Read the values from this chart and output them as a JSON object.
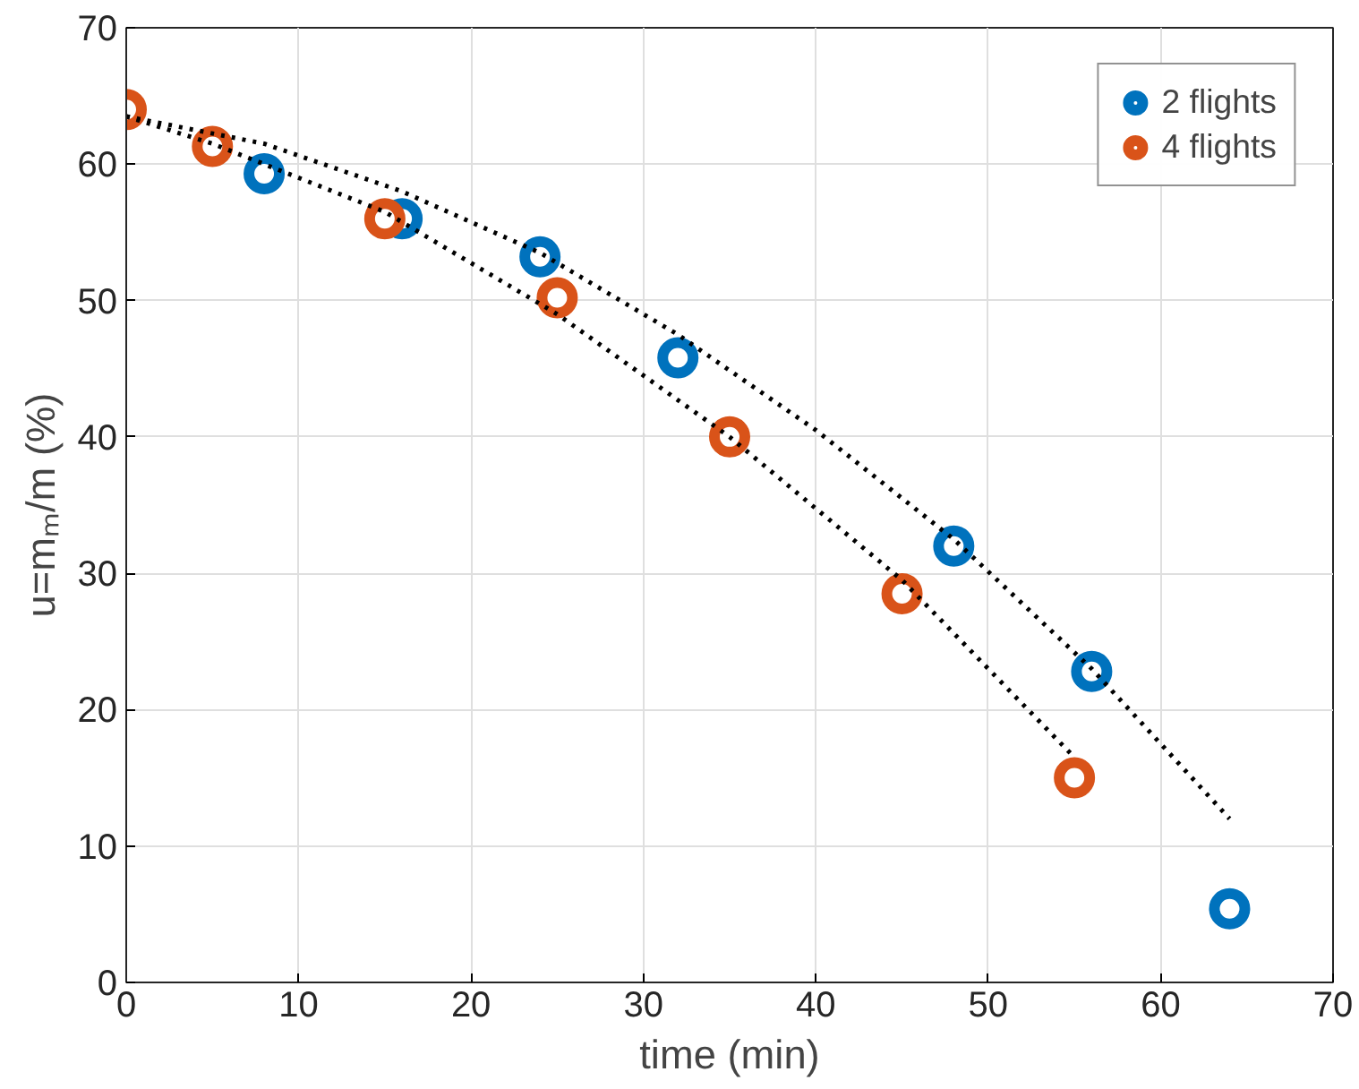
{
  "chart_data": {
    "type": "scatter",
    "xlabel": "time (min)",
    "ylabel": "u=mₘ/m (%)",
    "xlim": [
      0,
      70
    ],
    "ylim": [
      0,
      70
    ],
    "xticks": [
      0,
      10,
      20,
      30,
      40,
      50,
      60,
      70
    ],
    "yticks": [
      0,
      10,
      20,
      30,
      40,
      50,
      60,
      70
    ],
    "grid": true,
    "legend": "top right",
    "series": [
      {
        "name": "2 flights",
        "color": "#0072bd",
        "marker": "circle",
        "x": [
          8,
          16,
          24,
          32,
          48,
          56,
          64
        ],
        "values": [
          59.3,
          56,
          53.2,
          45.8,
          32,
          22.8,
          5.4
        ]
      },
      {
        "name": "4 flights",
        "color": "#d95319",
        "marker": "circle",
        "x": [
          0,
          5,
          15,
          25,
          35,
          45,
          55
        ],
        "values": [
          64,
          61.3,
          56,
          50.2,
          40,
          28.5,
          15
        ]
      },
      {
        "type": "line",
        "color": "#000000",
        "line_style": "dotted",
        "marker": "none",
        "x": [
          0,
          8,
          16,
          24,
          32,
          40,
          48,
          56,
          64
        ],
        "values": [
          63.5,
          61.5,
          58,
          53.5,
          47.5,
          40.5,
          32.5,
          23,
          12
        ]
      },
      {
        "type": "line",
        "color": "#000000",
        "line_style": "dotted",
        "marker": "none",
        "x": [
          0,
          5,
          15,
          25,
          35,
          45,
          55
        ],
        "values": [
          63.5,
          61.5,
          56.5,
          49,
          40,
          29.5,
          16.5
        ]
      }
    ]
  }
}
